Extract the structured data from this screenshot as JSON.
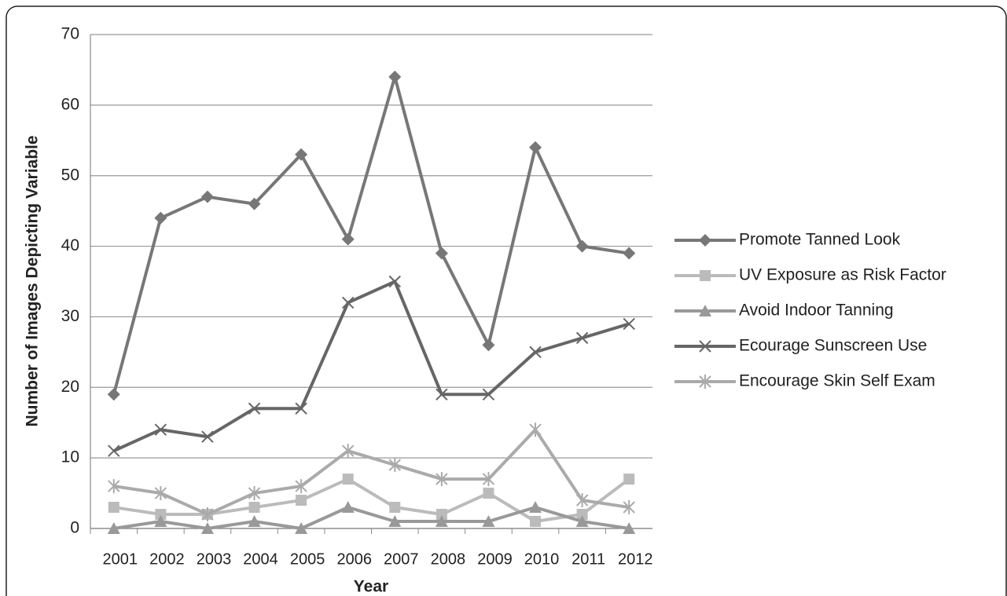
{
  "chart_data": {
    "type": "line",
    "y_label": "Number of Images Depicting Variable",
    "x_label": "Year",
    "categories": [
      "2001",
      "2002",
      "2003",
      "2004",
      "2005",
      "2006",
      "2007",
      "2008",
      "2009",
      "2010",
      "2011",
      "2012"
    ],
    "series": [
      {
        "name": "Promote Tanned Look",
        "color": "#777777",
        "marker": "diamond",
        "values": [
          19,
          44,
          47,
          46,
          53,
          41,
          64,
          39,
          26,
          54,
          40,
          39
        ]
      },
      {
        "name": "UV Exposure as Risk Factor",
        "color": "#bbbbbb",
        "marker": "square",
        "values": [
          3,
          2,
          2,
          3,
          4,
          7,
          3,
          2,
          5,
          1,
          2,
          7
        ]
      },
      {
        "name": "Avoid Indoor Tanning",
        "color": "#999999",
        "marker": "triangle",
        "values": [
          0,
          1,
          0,
          1,
          0,
          3,
          1,
          1,
          1,
          3,
          1,
          0
        ]
      },
      {
        "name": "Ecourage Sunscreen Use",
        "color": "#666666",
        "marker": "x",
        "values": [
          11,
          14,
          13,
          17,
          17,
          32,
          35,
          19,
          19,
          25,
          27,
          29
        ]
      },
      {
        "name": "Encourage Skin Self Exam",
        "color": "#aaaaaa",
        "marker": "star",
        "values": [
          6,
          5,
          2,
          5,
          6,
          11,
          9,
          7,
          7,
          14,
          4,
          3
        ]
      }
    ],
    "ylim": [
      0,
      70
    ],
    "yticks": [
      0,
      10,
      20,
      30,
      40,
      50,
      60,
      70
    ],
    "grid": true,
    "legend": "right"
  }
}
